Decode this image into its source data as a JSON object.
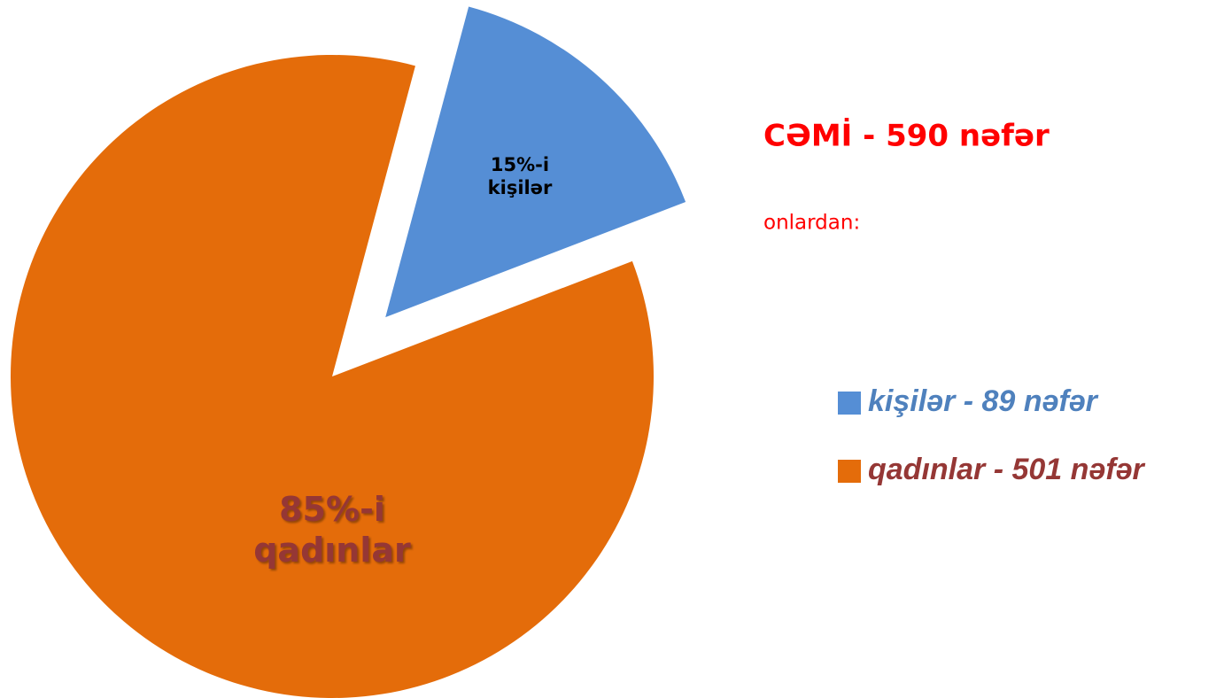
{
  "chart_data": {
    "type": "pie",
    "title": "CƏMİ - 590 nəfər",
    "subtitle": "onlardan:",
    "categories": [
      "kişilər - 89 nəfər",
      "qadınlar - 501 nəfər"
    ],
    "values": [
      15,
      85
    ],
    "value_labels": [
      "15%-i kişilər",
      "85%-i qadınlar"
    ],
    "colors": [
      "#558ed5",
      "#e46c0a"
    ],
    "legend": "right"
  }
}
